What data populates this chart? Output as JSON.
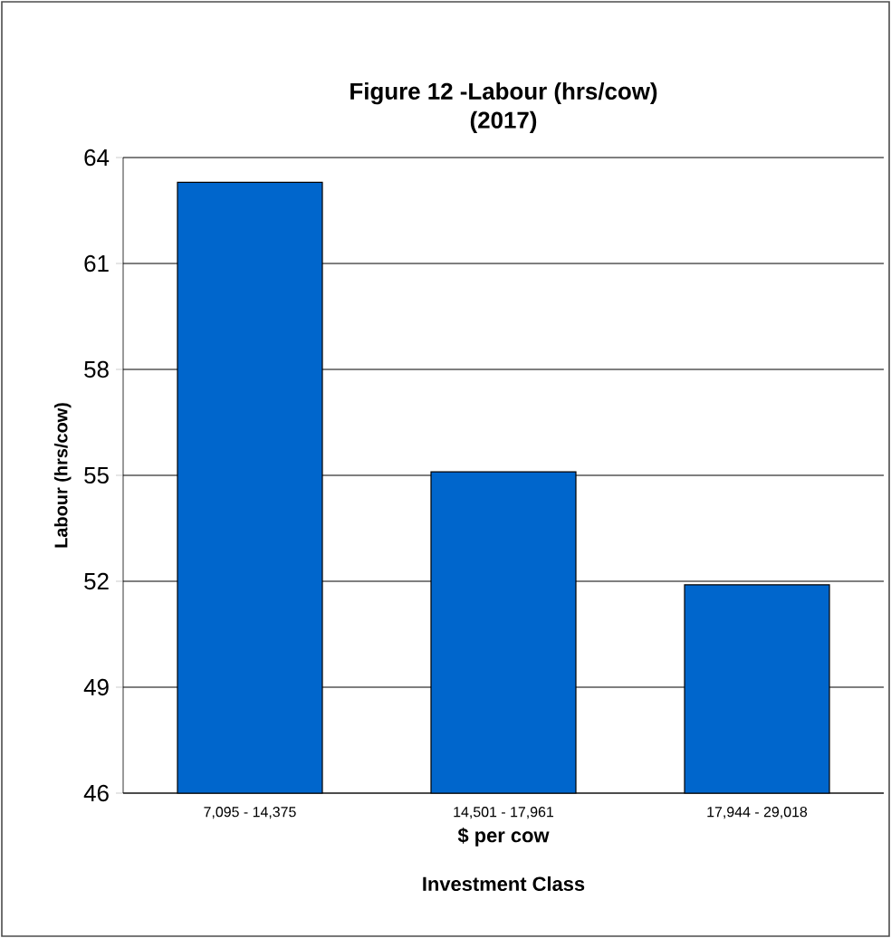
{
  "chart_data": {
    "type": "bar",
    "title": "Figure 12 -Labour (hrs/cow)",
    "subtitle": "(2017)",
    "xlabel": "$ per cow",
    "annotations": [
      "Investment Class"
    ],
    "ylabel": "Labour (hrs/cow)",
    "categories": [
      "7,095 - 14,375",
      "14,501 - 17,961",
      "17,944 - 29,018"
    ],
    "values": [
      63.3,
      55.1,
      51.9
    ],
    "color": "#0066cc",
    "ylim": [
      46,
      64
    ],
    "yticks": [
      46,
      49,
      52,
      55,
      58,
      61,
      64
    ],
    "grid": "y"
  }
}
